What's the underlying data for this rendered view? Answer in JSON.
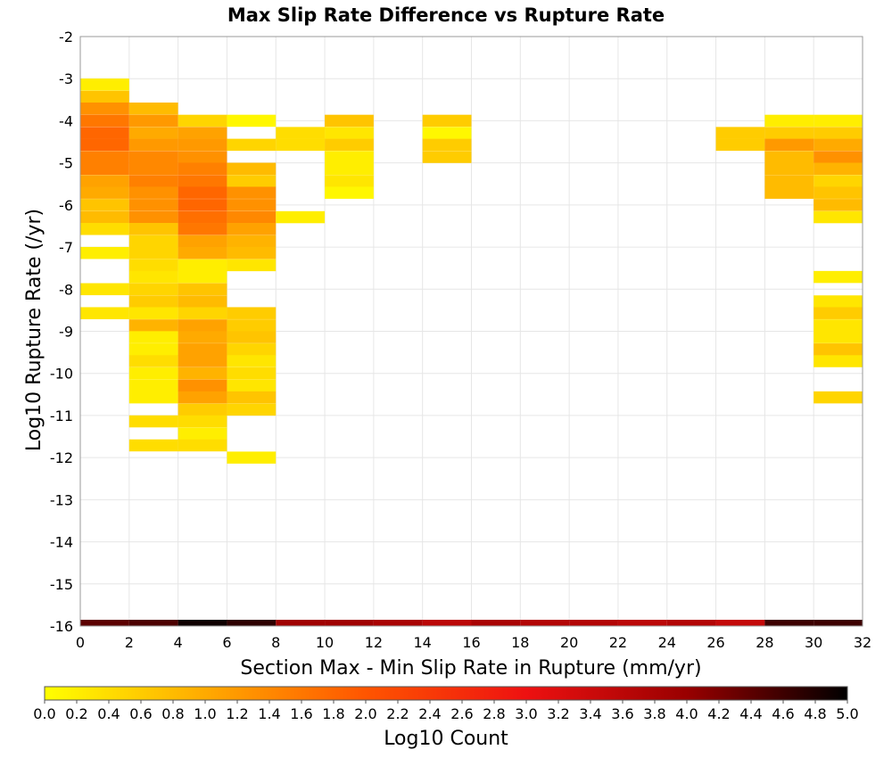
{
  "chart_data": {
    "type": "heatmap",
    "title": "Max Slip Rate Difference vs Rupture Rate",
    "xlabel": "Section Max - Min Slip Rate in Rupture (mm/yr)",
    "ylabel": "Log10 Rupture Rate (/yr)",
    "xlim": [
      0,
      32
    ],
    "ylim": [
      -16,
      -2
    ],
    "x_ticks": [
      "0",
      "2",
      "4",
      "6",
      "8",
      "10",
      "12",
      "14",
      "16",
      "18",
      "20",
      "22",
      "24",
      "26",
      "28",
      "30",
      "32"
    ],
    "y_ticks": [
      "-2",
      "-3",
      "-4",
      "-5",
      "-6",
      "-7",
      "-8",
      "-9",
      "-10",
      "-11",
      "-12",
      "-13",
      "-14",
      "-15",
      "-16"
    ],
    "grid": true,
    "colorbar": {
      "label": "Log10 Count",
      "range": [
        0,
        5
      ],
      "ticks": [
        "0.0",
        "0.2",
        "0.4",
        "0.6",
        "0.8",
        "1.0",
        "1.2",
        "1.4",
        "1.6",
        "1.8",
        "2.0",
        "2.2",
        "2.4",
        "2.6",
        "2.8",
        "3.0",
        "3.2",
        "3.4",
        "3.6",
        "3.8",
        "4.0",
        "4.2",
        "4.4",
        "4.6",
        "4.8",
        "5.0"
      ],
      "colors": [
        "#ffff00",
        "#ffaa00",
        "#ff5500",
        "#ee1111",
        "#990000",
        "#000000"
      ]
    },
    "cell_width": 2,
    "cell_height": 0.2857,
    "cells": [
      {
        "x": 0,
        "y": -3.14,
        "v": 0.2
      },
      {
        "x": 0,
        "y": -3.43,
        "v": 0.7
      },
      {
        "x": 0,
        "y": -3.71,
        "v": 1.3
      },
      {
        "x": 0,
        "y": -4.0,
        "v": 1.6
      },
      {
        "x": 0,
        "y": -4.29,
        "v": 1.8
      },
      {
        "x": 0,
        "y": -4.57,
        "v": 1.8
      },
      {
        "x": 0,
        "y": -4.86,
        "v": 1.5
      },
      {
        "x": 0,
        "y": -5.14,
        "v": 1.5
      },
      {
        "x": 0,
        "y": -5.43,
        "v": 1.1
      },
      {
        "x": 0,
        "y": -5.71,
        "v": 1.0
      },
      {
        "x": 0,
        "y": -6.0,
        "v": 0.7
      },
      {
        "x": 0,
        "y": -6.29,
        "v": 0.8
      },
      {
        "x": 0,
        "y": -6.57,
        "v": 0.4
      },
      {
        "x": 0,
        "y": -7.14,
        "v": 0.2
      },
      {
        "x": 0,
        "y": -8.0,
        "v": 0.3
      },
      {
        "x": 0,
        "y": -8.57,
        "v": 0.3
      },
      {
        "x": 2,
        "y": -3.71,
        "v": 0.8
      },
      {
        "x": 2,
        "y": -4.0,
        "v": 1.2
      },
      {
        "x": 2,
        "y": -4.29,
        "v": 1.0
      },
      {
        "x": 2,
        "y": -4.57,
        "v": 1.2
      },
      {
        "x": 2,
        "y": -4.86,
        "v": 1.4
      },
      {
        "x": 2,
        "y": -5.14,
        "v": 1.4
      },
      {
        "x": 2,
        "y": -5.43,
        "v": 1.5
      },
      {
        "x": 2,
        "y": -5.71,
        "v": 1.3
      },
      {
        "x": 2,
        "y": -6.0,
        "v": 1.3
      },
      {
        "x": 2,
        "y": -6.29,
        "v": 1.3
      },
      {
        "x": 2,
        "y": -6.57,
        "v": 0.7
      },
      {
        "x": 2,
        "y": -6.86,
        "v": 0.5
      },
      {
        "x": 2,
        "y": -7.14,
        "v": 0.5
      },
      {
        "x": 2,
        "y": -7.43,
        "v": 0.4
      },
      {
        "x": 2,
        "y": -7.71,
        "v": 0.3
      },
      {
        "x": 2,
        "y": -8.0,
        "v": 0.5
      },
      {
        "x": 2,
        "y": -8.29,
        "v": 0.6
      },
      {
        "x": 2,
        "y": -8.57,
        "v": 0.3
      },
      {
        "x": 2,
        "y": -8.86,
        "v": 0.9
      },
      {
        "x": 2,
        "y": -9.14,
        "v": 0.2
      },
      {
        "x": 2,
        "y": -9.43,
        "v": 0.2
      },
      {
        "x": 2,
        "y": -9.71,
        "v": 0.4
      },
      {
        "x": 2,
        "y": -10.0,
        "v": 0.2
      },
      {
        "x": 2,
        "y": -10.29,
        "v": 0.2
      },
      {
        "x": 2,
        "y": -10.57,
        "v": 0.2
      },
      {
        "x": 2,
        "y": -11.14,
        "v": 0.4
      },
      {
        "x": 2,
        "y": -11.71,
        "v": 0.4
      },
      {
        "x": 4,
        "y": -4.0,
        "v": 0.5
      },
      {
        "x": 4,
        "y": -4.29,
        "v": 1.1
      },
      {
        "x": 4,
        "y": -4.57,
        "v": 1.2
      },
      {
        "x": 4,
        "y": -4.86,
        "v": 1.3
      },
      {
        "x": 4,
        "y": -5.14,
        "v": 1.5
      },
      {
        "x": 4,
        "y": -5.43,
        "v": 1.6
      },
      {
        "x": 4,
        "y": -5.71,
        "v": 1.8
      },
      {
        "x": 4,
        "y": -6.0,
        "v": 1.8
      },
      {
        "x": 4,
        "y": -6.29,
        "v": 1.7
      },
      {
        "x": 4,
        "y": -6.57,
        "v": 1.6
      },
      {
        "x": 4,
        "y": -6.86,
        "v": 1.1
      },
      {
        "x": 4,
        "y": -7.14,
        "v": 1.0
      },
      {
        "x": 4,
        "y": -7.43,
        "v": 0.2
      },
      {
        "x": 4,
        "y": -7.71,
        "v": 0.2
      },
      {
        "x": 4,
        "y": -8.0,
        "v": 0.7
      },
      {
        "x": 4,
        "y": -8.29,
        "v": 0.8
      },
      {
        "x": 4,
        "y": -8.57,
        "v": 0.5
      },
      {
        "x": 4,
        "y": -8.86,
        "v": 1.1
      },
      {
        "x": 4,
        "y": -9.14,
        "v": 1.0
      },
      {
        "x": 4,
        "y": -9.43,
        "v": 1.1
      },
      {
        "x": 4,
        "y": -9.71,
        "v": 1.1
      },
      {
        "x": 4,
        "y": -10.0,
        "v": 0.9
      },
      {
        "x": 4,
        "y": -10.29,
        "v": 1.3
      },
      {
        "x": 4,
        "y": -10.57,
        "v": 1.1
      },
      {
        "x": 4,
        "y": -10.86,
        "v": 0.6
      },
      {
        "x": 4,
        "y": -11.14,
        "v": 0.4
      },
      {
        "x": 4,
        "y": -11.43,
        "v": 0.2
      },
      {
        "x": 4,
        "y": -11.71,
        "v": 0.4
      },
      {
        "x": 6,
        "y": -4.0,
        "v": 0.1
      },
      {
        "x": 6,
        "y": -4.57,
        "v": 0.5
      },
      {
        "x": 6,
        "y": -5.14,
        "v": 0.8
      },
      {
        "x": 6,
        "y": -5.43,
        "v": 0.6
      },
      {
        "x": 6,
        "y": -5.71,
        "v": 1.3
      },
      {
        "x": 6,
        "y": -6.0,
        "v": 1.3
      },
      {
        "x": 6,
        "y": -6.29,
        "v": 1.4
      },
      {
        "x": 6,
        "y": -6.57,
        "v": 1.1
      },
      {
        "x": 6,
        "y": -6.86,
        "v": 0.9
      },
      {
        "x": 6,
        "y": -7.14,
        "v": 0.8
      },
      {
        "x": 6,
        "y": -7.43,
        "v": 0.3
      },
      {
        "x": 6,
        "y": -8.57,
        "v": 0.6
      },
      {
        "x": 6,
        "y": -8.86,
        "v": 0.6
      },
      {
        "x": 6,
        "y": -9.14,
        "v": 0.7
      },
      {
        "x": 6,
        "y": -9.43,
        "v": 0.5
      },
      {
        "x": 6,
        "y": -9.71,
        "v": 0.3
      },
      {
        "x": 6,
        "y": -10.0,
        "v": 0.4
      },
      {
        "x": 6,
        "y": -10.29,
        "v": 0.3
      },
      {
        "x": 6,
        "y": -10.57,
        "v": 0.7
      },
      {
        "x": 6,
        "y": -10.86,
        "v": 0.5
      },
      {
        "x": 6,
        "y": -12.0,
        "v": 0.2
      },
      {
        "x": 8,
        "y": -4.29,
        "v": 0.4
      },
      {
        "x": 8,
        "y": -4.57,
        "v": 0.4
      },
      {
        "x": 8,
        "y": -6.29,
        "v": 0.2
      },
      {
        "x": 10,
        "y": -4.0,
        "v": 0.7
      },
      {
        "x": 10,
        "y": -4.29,
        "v": 0.3
      },
      {
        "x": 10,
        "y": -4.57,
        "v": 0.6
      },
      {
        "x": 10,
        "y": -4.86,
        "v": 0.2
      },
      {
        "x": 10,
        "y": -5.14,
        "v": 0.2
      },
      {
        "x": 10,
        "y": -5.43,
        "v": 0.3
      },
      {
        "x": 10,
        "y": -5.71,
        "v": 0.1
      },
      {
        "x": 14,
        "y": -4.0,
        "v": 0.6
      },
      {
        "x": 14,
        "y": -4.29,
        "v": 0.1
      },
      {
        "x": 14,
        "y": -4.57,
        "v": 0.6
      },
      {
        "x": 14,
        "y": -4.86,
        "v": 0.6
      },
      {
        "x": 26,
        "y": -4.29,
        "v": 0.6
      },
      {
        "x": 26,
        "y": -4.57,
        "v": 0.6
      },
      {
        "x": 28,
        "y": -4.0,
        "v": 0.2
      },
      {
        "x": 28,
        "y": -4.29,
        "v": 0.6
      },
      {
        "x": 28,
        "y": -4.57,
        "v": 1.2
      },
      {
        "x": 28,
        "y": -4.86,
        "v": 0.8
      },
      {
        "x": 28,
        "y": -5.14,
        "v": 0.8
      },
      {
        "x": 28,
        "y": -5.43,
        "v": 0.8
      },
      {
        "x": 28,
        "y": -5.71,
        "v": 0.8
      },
      {
        "x": 30,
        "y": -4.0,
        "v": 0.2
      },
      {
        "x": 30,
        "y": -4.29,
        "v": 0.6
      },
      {
        "x": 30,
        "y": -4.57,
        "v": 1.0
      },
      {
        "x": 30,
        "y": -4.86,
        "v": 1.3
      },
      {
        "x": 30,
        "y": -5.14,
        "v": 0.9
      },
      {
        "x": 30,
        "y": -5.43,
        "v": 0.5
      },
      {
        "x": 30,
        "y": -5.71,
        "v": 0.7
      },
      {
        "x": 30,
        "y": -6.0,
        "v": 0.8
      },
      {
        "x": 30,
        "y": -6.29,
        "v": 0.3
      },
      {
        "x": 30,
        "y": -7.71,
        "v": 0.2
      },
      {
        "x": 30,
        "y": -8.29,
        "v": 0.3
      },
      {
        "x": 30,
        "y": -8.57,
        "v": 0.6
      },
      {
        "x": 30,
        "y": -8.86,
        "v": 0.3
      },
      {
        "x": 30,
        "y": -9.14,
        "v": 0.3
      },
      {
        "x": 30,
        "y": -9.43,
        "v": 0.7
      },
      {
        "x": 30,
        "y": -9.71,
        "v": 0.3
      },
      {
        "x": 30,
        "y": -10.57,
        "v": 0.5
      }
    ],
    "bottom_row": {
      "y": -16,
      "cells": [
        {
          "x": 0,
          "v": 4.4
        },
        {
          "x": 2,
          "v": 4.5
        },
        {
          "x": 4,
          "v": 4.9
        },
        {
          "x": 6,
          "v": 4.7
        },
        {
          "x": 8,
          "v": 3.9
        },
        {
          "x": 10,
          "v": 3.9
        },
        {
          "x": 12,
          "v": 3.8
        },
        {
          "x": 14,
          "v": 3.6
        },
        {
          "x": 16,
          "v": 3.8
        },
        {
          "x": 18,
          "v": 3.7
        },
        {
          "x": 20,
          "v": 3.7
        },
        {
          "x": 22,
          "v": 3.6
        },
        {
          "x": 24,
          "v": 3.7
        },
        {
          "x": 26,
          "v": 3.5
        },
        {
          "x": 28,
          "v": 4.6
        },
        {
          "x": 30,
          "v": 4.6
        }
      ]
    }
  }
}
